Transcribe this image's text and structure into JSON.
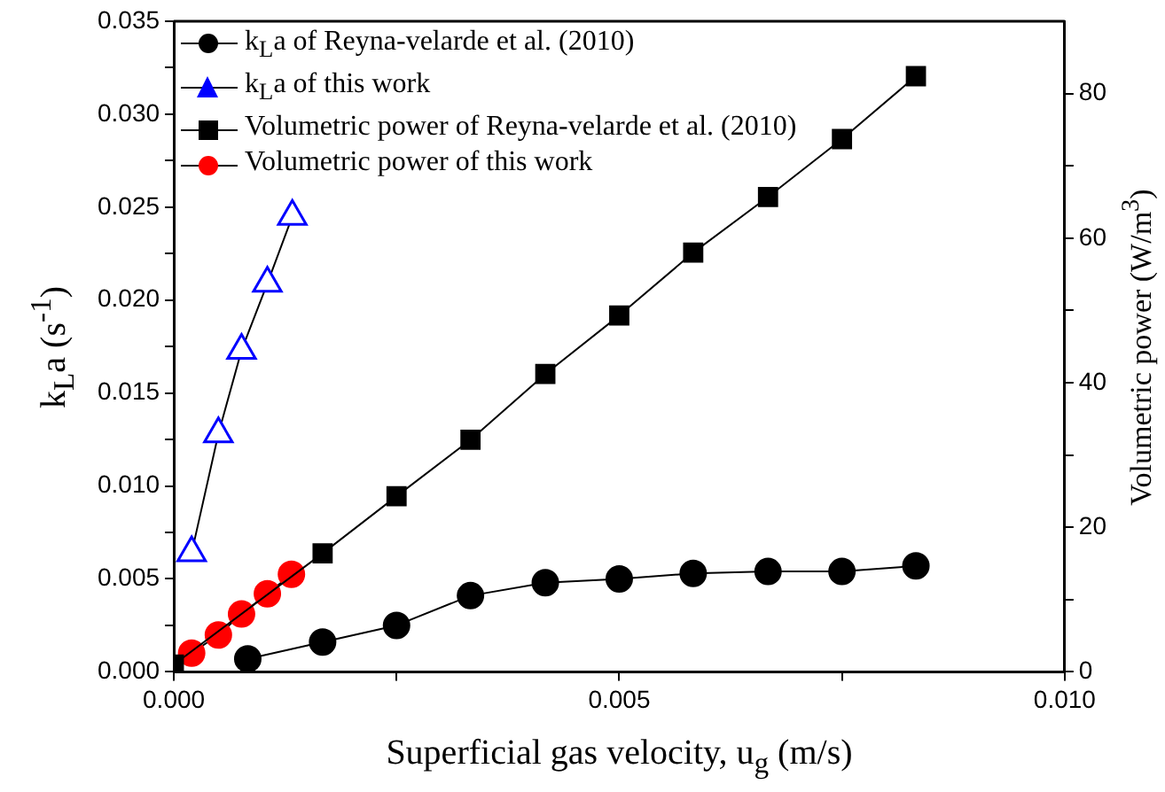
{
  "chart_data": {
    "type": "line",
    "xlabel": "Superficial gas velocity, u$_{g}$ (m/s)",
    "ylabel": "k$_{L}$a (s$^{-1}$)",
    "y2label": "Volumetric power (W/m$^{3}$)",
    "xlim": [
      0,
      0.01
    ],
    "xticks": [
      {
        "value": 0,
        "label": "0.000"
      },
      {
        "value": 0.0025,
        "label": null
      },
      0.005,
      {
        "value": 0.0075,
        "label": null
      },
      {
        "value": 0.01,
        "label": "0.010"
      }
    ],
    "ylim": [
      0,
      0.035
    ],
    "yticks": [
      {
        "value": 0,
        "label": "0.000"
      },
      {
        "value": 0.0025,
        "label": null
      },
      0.005,
      {
        "value": 0.0075,
        "label": null
      },
      {
        "value": 0.01,
        "label": "0.010"
      },
      {
        "value": 0.0125,
        "label": null
      },
      0.015,
      {
        "value": 0.0175,
        "label": null
      },
      {
        "value": 0.02,
        "label": "0.020"
      },
      {
        "value": 0.0225,
        "label": null
      },
      0.025,
      {
        "value": 0.0275,
        "label": null
      },
      {
        "value": 0.03,
        "label": "0.030"
      },
      {
        "value": 0.0325,
        "label": null
      },
      0.035
    ],
    "y2lim": [
      0,
      90
    ],
    "y2ticks": [
      0,
      {
        "value": 10,
        "label": null
      },
      20,
      {
        "value": 30,
        "label": null
      },
      40,
      {
        "value": 50,
        "label": null
      },
      60,
      {
        "value": 70,
        "label": null
      },
      80
    ],
    "grid": false,
    "legend": "top left",
    "line_style": "solid",
    "series": [
      {
        "name": "k$_{L}$a of Reyna-velarde et al. (2010)",
        "color": "#000000",
        "marker": "circle",
        "x": [
          0.00083,
          0.00167,
          0.0025,
          0.00333,
          0.00417,
          0.005,
          0.00583,
          0.00667,
          0.0075,
          0.00833
        ],
        "values": [
          0.0007,
          0.0016,
          0.0025,
          0.0041,
          0.0048,
          0.005,
          0.0053,
          0.0054,
          0.0054,
          0.0057
        ]
      },
      {
        "name": "k$_{L}$a of this work",
        "color": "#0000ff",
        "marker": "triangle",
        "x": [
          0.0002,
          0.0005,
          0.00076,
          0.00105,
          0.00133
        ],
        "values": [
          0.0064,
          0.0128,
          0.0173,
          0.0209,
          0.0245
        ]
      },
      {
        "name": "Volumetric power of Reyna-velarde et al. (2010)",
        "color": "#000000",
        "marker": "square",
        "axis": "y2",
        "x": [
          0,
          0.00167,
          0.0025,
          0.00333,
          0.00417,
          0.005,
          0.00583,
          0.00667,
          0.0075,
          0.00833
        ],
        "values": [
          1,
          16.4,
          24.3,
          32.1,
          41.2,
          49.3,
          58,
          65.7,
          73.7,
          82.4
        ]
      },
      {
        "name": "Volumetric power of this work",
        "color": "#ff0000",
        "marker": "circle",
        "axis": "y2",
        "x": [
          0.0002,
          0.0005,
          0.00076,
          0.00105,
          0.00132
        ],
        "values": [
          2.6,
          5.1,
          8,
          10.8,
          13.5
        ]
      }
    ]
  }
}
